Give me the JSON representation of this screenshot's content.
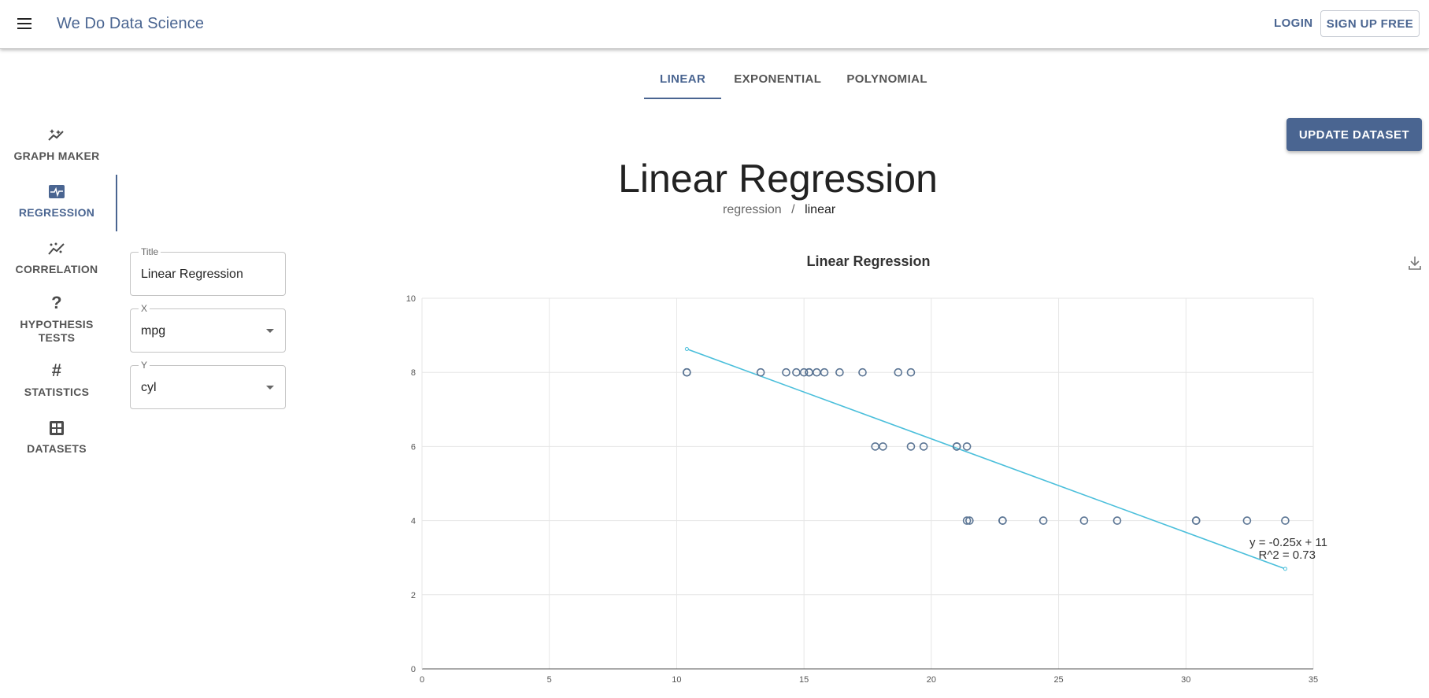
{
  "app": {
    "brand": "We Do Data Science",
    "login_label": "LOGIN",
    "signup_label": "SIGN UP FREE"
  },
  "tabs": [
    {
      "label": "LINEAR",
      "active": true
    },
    {
      "label": "EXPONENTIAL",
      "active": false
    },
    {
      "label": "POLYNOMIAL",
      "active": false
    }
  ],
  "sidebar": {
    "items": [
      {
        "label": "GRAPH MAKER",
        "icon": "graph-maker-icon"
      },
      {
        "label": "REGRESSION",
        "icon": "regression-icon",
        "active": true
      },
      {
        "label": "CORRELATION",
        "icon": "correlation-icon"
      },
      {
        "label": "HYPOTHESIS TESTS",
        "icon": "question-icon"
      },
      {
        "label": "STATISTICS",
        "icon": "hash-icon"
      },
      {
        "label": "DATASETS",
        "icon": "grid-icon"
      }
    ]
  },
  "form": {
    "title_label": "Title",
    "title_value": "Linear Regression",
    "x_label": "X",
    "x_value": "mpg",
    "y_label": "Y",
    "y_value": "cyl"
  },
  "main": {
    "update_label": "UPDATE DATASET",
    "page_title": "Linear Regression",
    "breadcrumb": {
      "parent": "regression",
      "separator": "/",
      "current": "linear"
    }
  },
  "colors": {
    "accent": "#4a6591",
    "line": "#4bbfdb",
    "points": "#5b7594",
    "grid": "#e6e6e6"
  },
  "chart_data": {
    "type": "scatter",
    "title": "Linear Regression",
    "xlim": [
      0,
      35
    ],
    "ylim": [
      0,
      10
    ],
    "xticks": [
      0,
      5,
      10,
      15,
      20,
      25,
      30,
      35
    ],
    "yticks": [
      0,
      2,
      4,
      6,
      8,
      10
    ],
    "grid": true,
    "points": [
      [
        21.0,
        6
      ],
      [
        21.0,
        6
      ],
      [
        22.8,
        4
      ],
      [
        21.4,
        6
      ],
      [
        18.7,
        8
      ],
      [
        18.1,
        6
      ],
      [
        14.3,
        8
      ],
      [
        24.4,
        4
      ],
      [
        22.8,
        4
      ],
      [
        19.2,
        6
      ],
      [
        17.8,
        6
      ],
      [
        16.4,
        8
      ],
      [
        17.3,
        8
      ],
      [
        15.2,
        8
      ],
      [
        10.4,
        8
      ],
      [
        10.4,
        8
      ],
      [
        14.7,
        8
      ],
      [
        32.4,
        4
      ],
      [
        30.4,
        4
      ],
      [
        33.9,
        4
      ],
      [
        21.5,
        4
      ],
      [
        15.5,
        8
      ],
      [
        15.2,
        8
      ],
      [
        13.3,
        8
      ],
      [
        19.2,
        8
      ],
      [
        27.3,
        4
      ],
      [
        26.0,
        4
      ],
      [
        30.4,
        4
      ],
      [
        15.8,
        8
      ],
      [
        19.7,
        6
      ],
      [
        15.0,
        8
      ],
      [
        21.4,
        4
      ]
    ],
    "fit_line": {
      "x": [
        10.4,
        33.9
      ],
      "y": [
        8.63,
        2.7
      ]
    },
    "equation": "y = -0.25x + 11",
    "r_squared": "R^2 = 0.73"
  }
}
